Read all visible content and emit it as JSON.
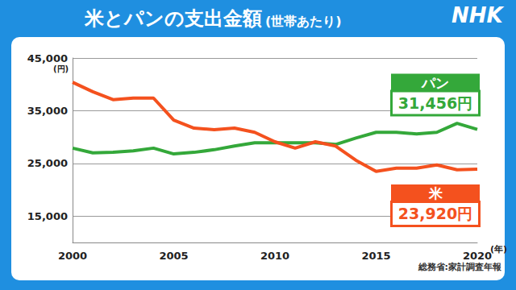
{
  "chart_data": {
    "type": "line",
    "title": "米とパンの支出金額",
    "subtitle": "(世帯あたり)",
    "ylabel": "(円)",
    "xlabel": "(年)",
    "source": "総務省:家計調査年報",
    "logo": "NHK",
    "x": [
      2000,
      2001,
      2002,
      2003,
      2004,
      2005,
      2006,
      2007,
      2008,
      2009,
      2010,
      2011,
      2012,
      2013,
      2014,
      2015,
      2016,
      2017,
      2018,
      2019,
      2020
    ],
    "series": [
      {
        "name": "パン",
        "color": "#34a83a",
        "values": [
          27900,
          27000,
          27100,
          27400,
          27900,
          26800,
          27100,
          27600,
          28300,
          28900,
          28900,
          28900,
          28900,
          28600,
          29800,
          30900,
          30900,
          30600,
          30900,
          32600,
          31456
        ],
        "value_labels": [
          null,
          null,
          null,
          null,
          null,
          null,
          null,
          null,
          null,
          null,
          null,
          null,
          null,
          null,
          null,
          null,
          null,
          null,
          null,
          null,
          "31,456円"
        ]
      },
      {
        "name": "米",
        "color": "#f4511e",
        "values": [
          40400,
          38600,
          37100,
          37400,
          37400,
          33200,
          31700,
          31400,
          31700,
          30900,
          29100,
          27900,
          29100,
          28300,
          25600,
          23500,
          24100,
          24100,
          24700,
          23800,
          23920
        ],
        "value_labels": [
          null,
          null,
          null,
          null,
          null,
          null,
          null,
          null,
          null,
          null,
          null,
          null,
          null,
          null,
          null,
          null,
          null,
          null,
          null,
          null,
          "23,920円"
        ]
      }
    ],
    "xlim": [
      2000,
      2020
    ],
    "xticks": [
      2000,
      2005,
      2010,
      2015,
      2020
    ],
    "ylim": [
      10000,
      45000
    ],
    "yticks": [
      {
        "value": 15000,
        "label": "15,000"
      },
      {
        "value": 25000,
        "label": "25,000"
      },
      {
        "value": 35000,
        "label": "35,000"
      },
      {
        "value": 45000,
        "label": "45,000"
      }
    ],
    "grid": true,
    "data_labels": true
  }
}
